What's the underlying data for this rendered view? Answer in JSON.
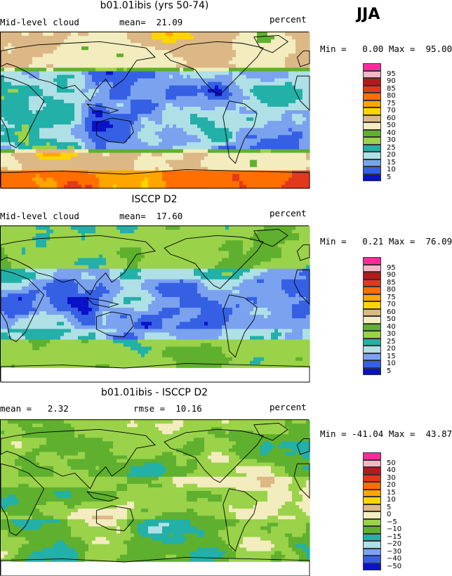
{
  "season": "JJA",
  "palette_cloud": [
    "#9e6fd6",
    "#0a12c8",
    "#3660e4",
    "#7aa2ef",
    "#aee0e6",
    "#22b0a8",
    "#9ad24a",
    "#5fb02e",
    "#f2ecbe",
    "#dcb886",
    "#ffd400",
    "#ffa500",
    "#ff6e00",
    "#e2391c",
    "#b31a1a",
    "#f7b6c6",
    "#ff2b9b"
  ],
  "palette_diff": [
    "#9e6fd6",
    "#0a12c8",
    "#3660e4",
    "#7aa2ef",
    "#aee0e6",
    "#22b0a8",
    "#5fb02e",
    "#9ad24a",
    "#f2ecbe",
    "#dcb886",
    "#ffd400",
    "#ffa500",
    "#ff6e00",
    "#e2391c",
    "#b31a1a",
    "#f7b6c6",
    "#ff2b9b"
  ],
  "panels": [
    {
      "title": "b01.01ibis (yrs 50-74)",
      "left_label": "Mid-level cloud",
      "center_label": "mean=  21.09",
      "right_label": "percent",
      "minmax": "Min =   0.00 Max =  95.00",
      "colorbar_labels": [
        "95",
        "90",
        "85",
        "80",
        "75",
        "70",
        "60",
        "50",
        "40",
        "30",
        "25",
        "20",
        "15",
        "10",
        "5"
      ],
      "map_type": "model"
    },
    {
      "title": "ISCCP D2",
      "left_label": "Mid-level cloud",
      "center_label": "mean=  17.60",
      "right_label": "percent",
      "minmax": "Min =   0.21 Max =  76.09",
      "colorbar_labels": [
        "95",
        "90",
        "85",
        "80",
        "75",
        "70",
        "60",
        "50",
        "40",
        "30",
        "25",
        "20",
        "15",
        "10",
        "5"
      ],
      "map_type": "obs"
    },
    {
      "title": "b01.01ibis - ISCCP D2",
      "left_label": "mean =   2.32",
      "center_label": "rmse =  10.16",
      "right_label": "percent",
      "minmax": "Min = -41.04 Max =  43.87",
      "colorbar_labels": [
        "50",
        "40",
        "30",
        "20",
        "15",
        "10",
        "5",
        "0",
        "−5",
        "−10",
        "−15",
        "−20",
        "−30",
        "−40",
        "−50"
      ],
      "map_type": "diff"
    }
  ]
}
